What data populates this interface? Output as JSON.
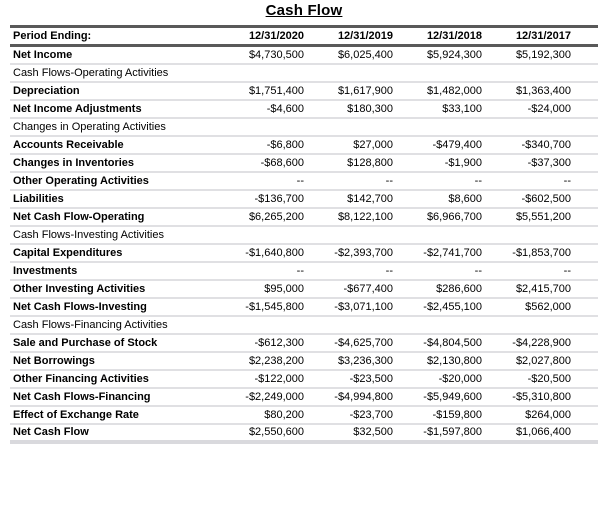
{
  "title": "Cash Flow",
  "table": {
    "header": {
      "label": "Period Ending:",
      "columns": [
        "12/31/2020",
        "12/31/2019",
        "12/31/2018",
        "12/31/2017"
      ]
    },
    "rows": [
      {
        "label": "Net Income",
        "type": "data",
        "values": [
          "$4,730,500",
          "$6,025,400",
          "$5,924,300",
          "$5,192,300"
        ]
      },
      {
        "label": "Cash Flows-Operating Activities",
        "type": "section",
        "values": [
          "",
          "",
          "",
          ""
        ]
      },
      {
        "label": "Depreciation",
        "type": "data",
        "values": [
          "$1,751,400",
          "$1,617,900",
          "$1,482,000",
          "$1,363,400"
        ]
      },
      {
        "label": "Net Income Adjustments",
        "type": "data",
        "values": [
          "-$4,600",
          "$180,300",
          "$33,100",
          "-$24,000"
        ]
      },
      {
        "label": "Changes in Operating Activities",
        "type": "section",
        "values": [
          "",
          "",
          "",
          ""
        ]
      },
      {
        "label": "Accounts Receivable",
        "type": "data",
        "values": [
          "-$6,800",
          "$27,000",
          "-$479,400",
          "-$340,700"
        ]
      },
      {
        "label": "Changes in Inventories",
        "type": "data",
        "values": [
          "-$68,600",
          "$128,800",
          "-$1,900",
          "-$37,300"
        ]
      },
      {
        "label": "Other Operating Activities",
        "type": "data",
        "values": [
          "--",
          "--",
          "--",
          "--"
        ]
      },
      {
        "label": "Liabilities",
        "type": "data",
        "values": [
          "-$136,700",
          "$142,700",
          "$8,600",
          "-$602,500"
        ]
      },
      {
        "label": "Net Cash Flow-Operating",
        "type": "data",
        "values": [
          "$6,265,200",
          "$8,122,100",
          "$6,966,700",
          "$5,551,200"
        ]
      },
      {
        "label": "Cash Flows-Investing Activities",
        "type": "section",
        "values": [
          "",
          "",
          "",
          ""
        ]
      },
      {
        "label": "Capital Expenditures",
        "type": "data",
        "values": [
          "-$1,640,800",
          "-$2,393,700",
          "-$2,741,700",
          "-$1,853,700"
        ]
      },
      {
        "label": "Investments",
        "type": "data",
        "values": [
          "--",
          "--",
          "--",
          "--"
        ]
      },
      {
        "label": "Other Investing Activities",
        "type": "data",
        "values": [
          "$95,000",
          "-$677,400",
          "$286,600",
          "$2,415,700"
        ]
      },
      {
        "label": "Net Cash Flows-Investing",
        "type": "data",
        "values": [
          "-$1,545,800",
          "-$3,071,100",
          "-$2,455,100",
          "$562,000"
        ]
      },
      {
        "label": "Cash Flows-Financing Activities",
        "type": "section",
        "values": [
          "",
          "",
          "",
          ""
        ]
      },
      {
        "label": "Sale and Purchase of Stock",
        "type": "data",
        "values": [
          "-$612,300",
          "-$4,625,700",
          "-$4,804,500",
          "-$4,228,900"
        ]
      },
      {
        "label": "Net Borrowings",
        "type": "data",
        "values": [
          "$2,238,200",
          "$3,236,300",
          "$2,130,800",
          "$2,027,800"
        ]
      },
      {
        "label": "Other Financing Activities",
        "type": "data",
        "values": [
          "-$122,000",
          "-$23,500",
          "-$20,000",
          "-$20,500"
        ]
      },
      {
        "label": "Net Cash Flows-Financing",
        "type": "data",
        "values": [
          "-$2,249,000",
          "-$4,994,800",
          "-$5,949,600",
          "-$5,310,800"
        ]
      },
      {
        "label": "Effect of Exchange Rate",
        "type": "data",
        "values": [
          "$80,200",
          "-$23,700",
          "-$159,800",
          "$264,000"
        ]
      },
      {
        "label": "Net Cash Flow",
        "type": "data",
        "values": [
          "$2,550,600",
          "$32,500",
          "-$1,597,800",
          "$1,066,400"
        ]
      }
    ]
  },
  "colors": {
    "heavy_rule": "#595959",
    "light_rule": "#e0e0e3",
    "bottom_rule": "#d9d9dd",
    "text": "#000000",
    "background": "#ffffff"
  }
}
